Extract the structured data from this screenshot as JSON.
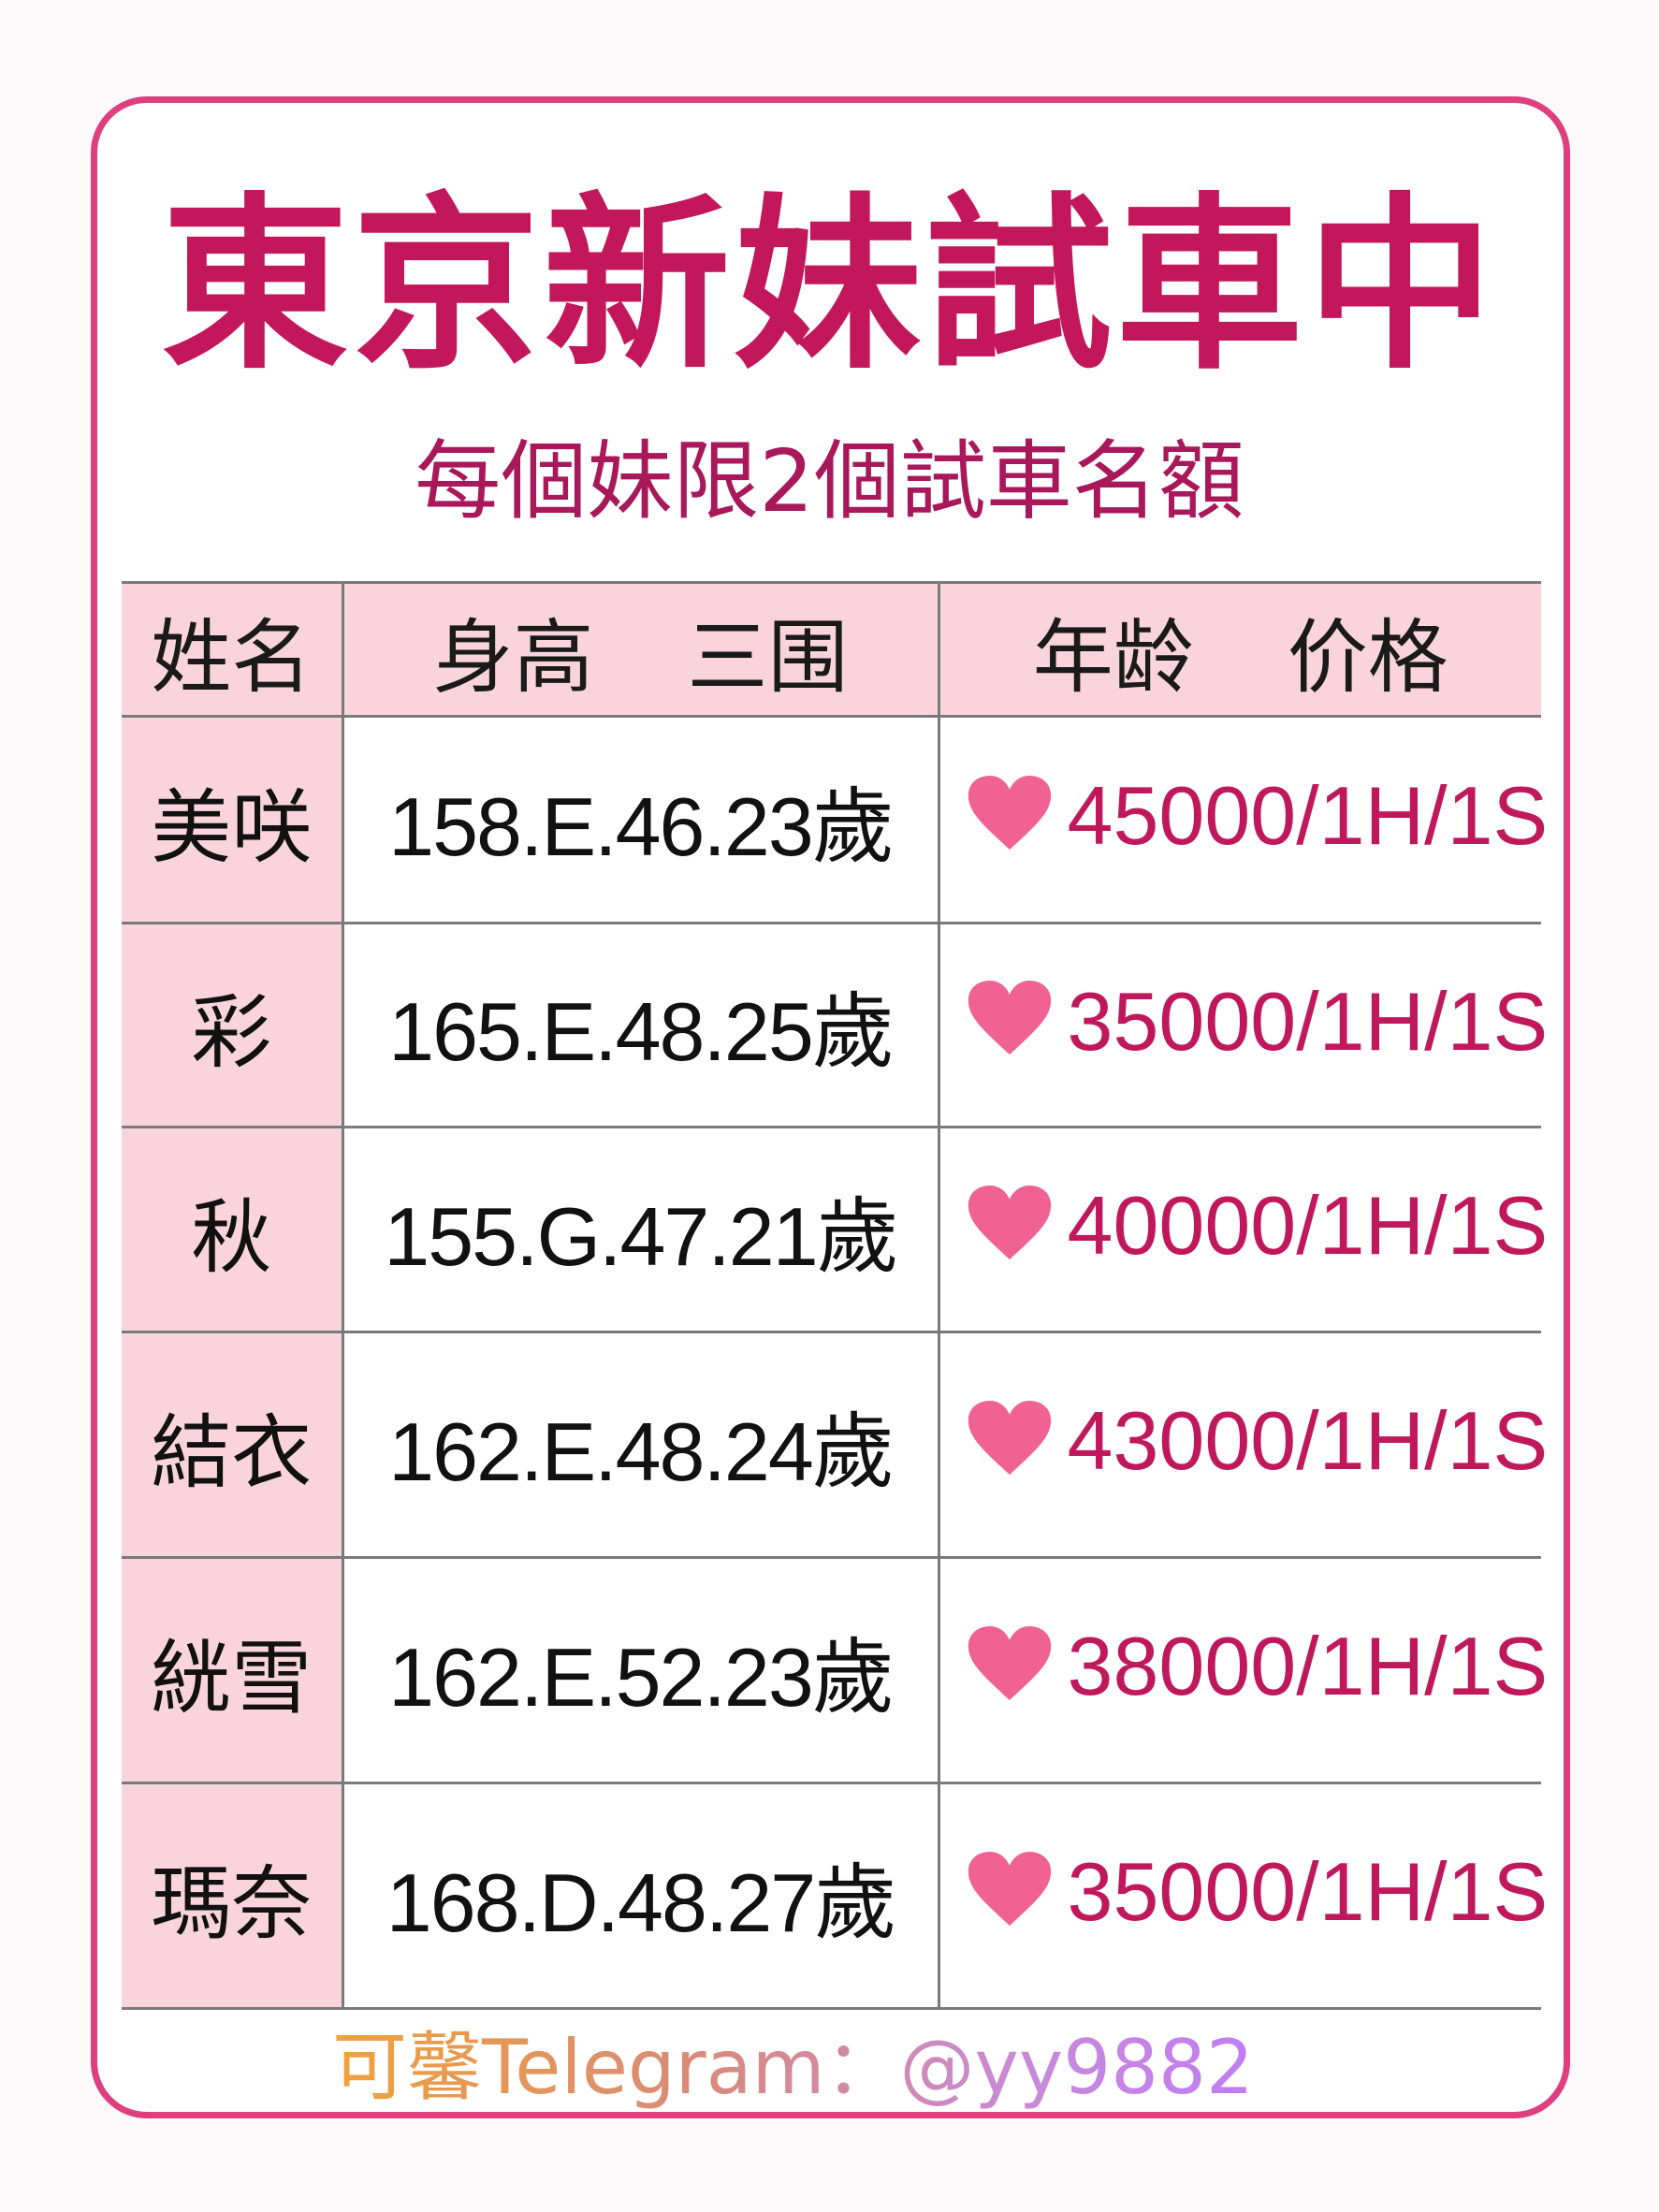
{
  "title": "東京新妹試車中",
  "subtitle": "每個妹限2個試車名額",
  "colors": {
    "border": "#de3f7f",
    "title": "#c3175b",
    "header_bg": "#f9d4de",
    "price": "#c0185c",
    "heart": "#f06292"
  },
  "table": {
    "headers": {
      "name": "姓名",
      "height": "身高",
      "measurements": "三围",
      "age": "年龄",
      "price": "价格"
    },
    "rows": [
      {
        "name": "美咲",
        "stats": "158.E.46.23歲",
        "price": "45000/1H/1S",
        "icon": "heart-icon"
      },
      {
        "name": "彩",
        "stats": "165.E.48.25歲",
        "price": "35000/1H/1S",
        "icon": "heart-icon"
      },
      {
        "name": "秋",
        "stats": "155.G.47.21歲",
        "price": "40000/1H/1S",
        "icon": "heart-icon"
      },
      {
        "name": "結衣",
        "stats": "162.E.48.24歲",
        "price": "43000/1H/1S",
        "icon": "heart-icon"
      },
      {
        "name": "絖雪",
        "stats": "162.E.52.23歲",
        "price": "38000/1H/1S",
        "icon": "heart-icon"
      },
      {
        "name": "瑪奈",
        "stats": "168.D.48.27歲",
        "price": "35000/1H/1S",
        "icon": "heart-icon"
      }
    ]
  },
  "footer": "可馨Telegram：@yy9882"
}
